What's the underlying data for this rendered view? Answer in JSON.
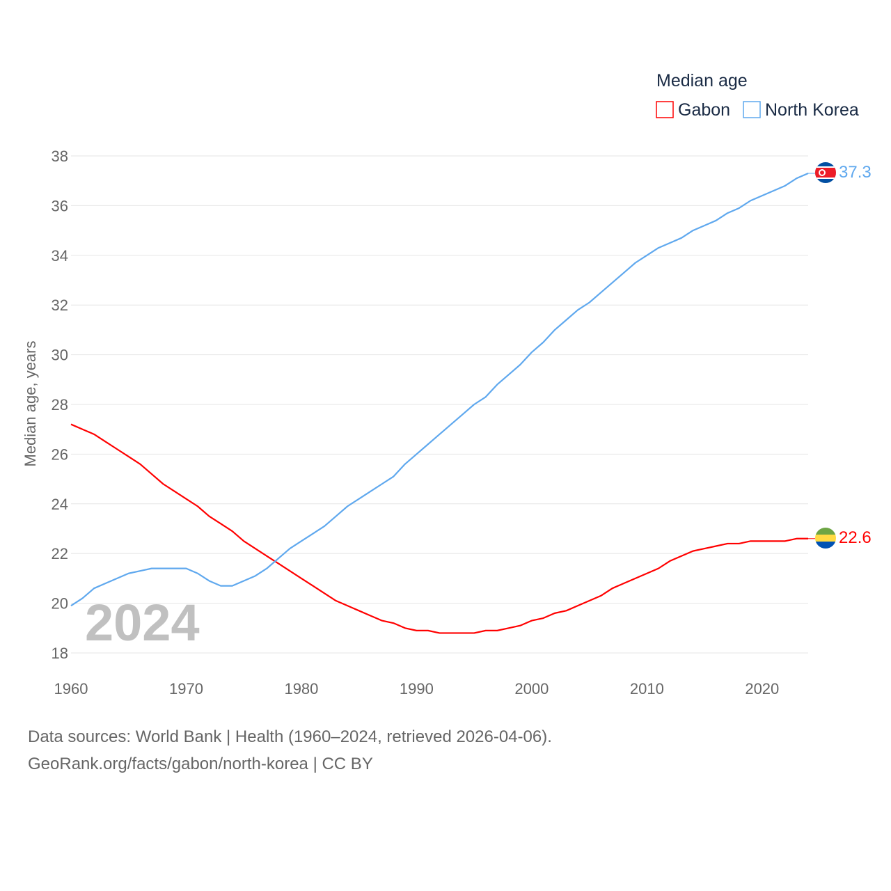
{
  "chart_data": {
    "type": "line",
    "title": "Median age",
    "xlabel": "",
    "ylabel": "Median age, years",
    "watermark_year": "2024",
    "xlim": [
      1960,
      2024
    ],
    "ylim": [
      18,
      38
    ],
    "x_ticks": [
      "1960",
      "1970",
      "1980",
      "1990",
      "2000",
      "2010",
      "2020"
    ],
    "y_ticks": [
      "18",
      "20",
      "22",
      "24",
      "26",
      "28",
      "30",
      "32",
      "34",
      "36",
      "38"
    ],
    "grid": true,
    "legend_position": "top-right",
    "x_start": 1960,
    "series": [
      {
        "name": "Gabon",
        "color": "#ff0000",
        "end_label": "22.6",
        "values": [
          27.2,
          27.0,
          26.8,
          26.5,
          26.2,
          25.9,
          25.6,
          25.2,
          24.8,
          24.5,
          24.2,
          23.9,
          23.5,
          23.2,
          22.9,
          22.5,
          22.2,
          21.9,
          21.6,
          21.3,
          21.0,
          20.7,
          20.4,
          20.1,
          19.9,
          19.7,
          19.5,
          19.3,
          19.2,
          19.0,
          18.9,
          18.9,
          18.8,
          18.8,
          18.8,
          18.8,
          18.9,
          18.9,
          19.0,
          19.1,
          19.3,
          19.4,
          19.6,
          19.7,
          19.9,
          20.1,
          20.3,
          20.6,
          20.8,
          21.0,
          21.2,
          21.4,
          21.7,
          21.9,
          22.1,
          22.2,
          22.3,
          22.4,
          22.4,
          22.5,
          22.5,
          22.5,
          22.5,
          22.6,
          22.6
        ]
      },
      {
        "name": "North Korea",
        "color": "#5fa8ee",
        "end_label": "37.3",
        "values": [
          19.9,
          20.2,
          20.6,
          20.8,
          21.0,
          21.2,
          21.3,
          21.4,
          21.4,
          21.4,
          21.4,
          21.2,
          20.9,
          20.7,
          20.7,
          20.9,
          21.1,
          21.4,
          21.8,
          22.2,
          22.5,
          22.8,
          23.1,
          23.5,
          23.9,
          24.2,
          24.5,
          24.8,
          25.1,
          25.6,
          26.0,
          26.4,
          26.8,
          27.2,
          27.6,
          28.0,
          28.3,
          28.8,
          29.2,
          29.6,
          30.1,
          30.5,
          31.0,
          31.4,
          31.8,
          32.1,
          32.5,
          32.9,
          33.3,
          33.7,
          34.0,
          34.3,
          34.5,
          34.7,
          35.0,
          35.2,
          35.4,
          35.7,
          35.9,
          36.2,
          36.4,
          36.6,
          36.8,
          37.1,
          37.3
        ]
      }
    ]
  },
  "footer": {
    "line1": "Data sources: World Bank | Health (1960–2024, retrieved 2026-04-06).",
    "line2": "GeoRank.org/facts/gabon/north-korea | CC BY"
  }
}
